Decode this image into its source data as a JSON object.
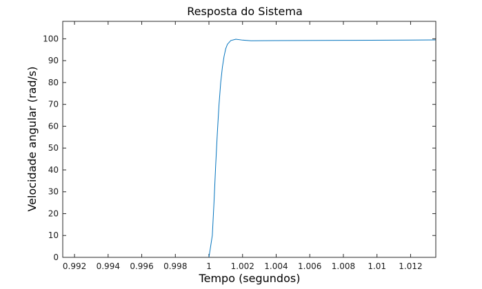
{
  "chart_data": {
    "type": "line",
    "title": "Resposta do Sistema",
    "xlabel": "Tempo (segundos)",
    "ylabel": "Velocidade angular (rad/s)",
    "xlim": [
      0.9913,
      1.0135
    ],
    "ylim": [
      0,
      108
    ],
    "xticks": [
      0.992,
      0.994,
      0.996,
      0.998,
      1.0,
      1.002,
      1.004,
      1.006,
      1.008,
      1.01,
      1.012
    ],
    "xtick_labels": [
      "0.992",
      "0.994",
      "0.996",
      "0.998",
      "1",
      "1.002",
      "1.004",
      "1.006",
      "1.008",
      "1.01",
      "1.012"
    ],
    "yticks": [
      0,
      10,
      20,
      30,
      40,
      50,
      60,
      70,
      80,
      90,
      100
    ],
    "ytick_labels": [
      "0",
      "10",
      "20",
      "30",
      "40",
      "50",
      "60",
      "70",
      "80",
      "90",
      "100"
    ],
    "grid": false,
    "line_color": "#0072BD",
    "series": [
      {
        "x": [
          0.9913,
          1.0,
          1.0002,
          1.0003,
          1.0004,
          1.0005,
          1.0006,
          1.0007,
          1.0008,
          1.0009,
          1.001,
          1.0011,
          1.0013,
          1.0016,
          1.002,
          1.0025,
          1.004,
          1.008,
          1.012,
          1.0135
        ],
        "y": [
          0,
          0,
          10,
          25,
          42,
          57,
          70,
          80,
          87,
          92,
          95.5,
          97.5,
          99.2,
          99.8,
          99.4,
          99.1,
          99.2,
          99.3,
          99.4,
          99.5
        ]
      }
    ]
  }
}
